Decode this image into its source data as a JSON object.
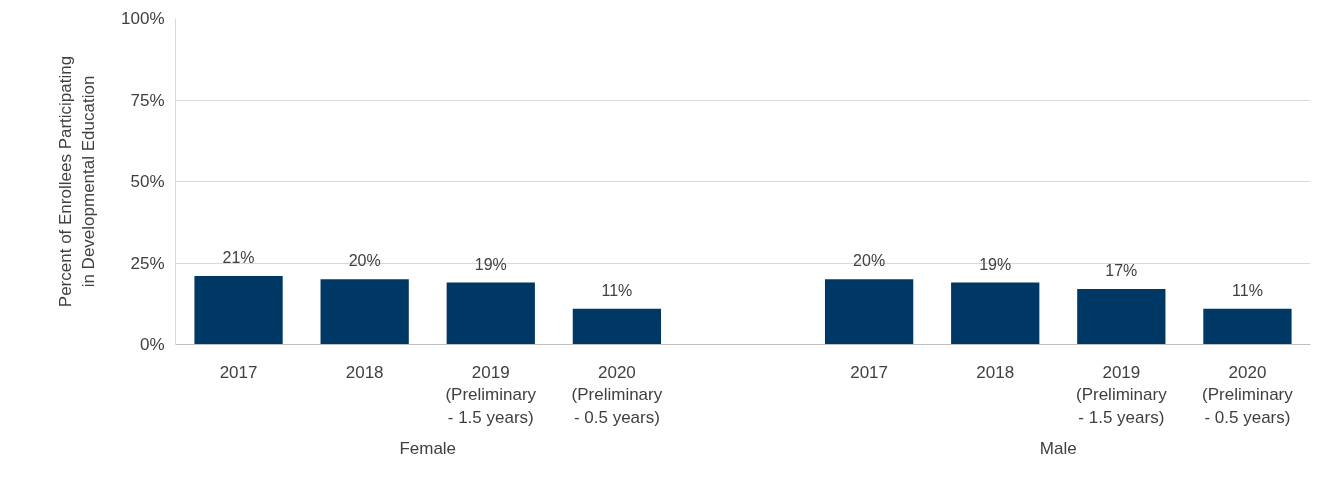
{
  "chart_data": {
    "type": "bar",
    "ylabel": "Percent of Enrollees Participating in Developmental Education",
    "categories": [
      "2017",
      "2018",
      "2019 (Preliminary - 1.5 years)",
      "2020 (Preliminary - 0.5 years)",
      null,
      "2017",
      "2018",
      "2019 (Preliminary - 1.5 years)",
      "2020 (Preliminary - 0.5 years)"
    ],
    "values": [
      21,
      20,
      19,
      11,
      null,
      20,
      19,
      17,
      11
    ],
    "color": "#003865",
    "value_labels": [
      "21%",
      "20%",
      "19%",
      "11%",
      null,
      "20%",
      "19%",
      "17%",
      "11%"
    ],
    "ylim": [
      0,
      100
    ],
    "yticks": [
      {
        "value": 0,
        "label": "0%"
      },
      {
        "value": 25,
        "label": "25%"
      },
      {
        "value": 50,
        "label": "50%"
      },
      {
        "value": 75,
        "label": "75%"
      },
      {
        "value": 100,
        "label": "100%"
      }
    ],
    "grid": "y",
    "annotations": [
      "Female",
      "Male"
    ]
  }
}
